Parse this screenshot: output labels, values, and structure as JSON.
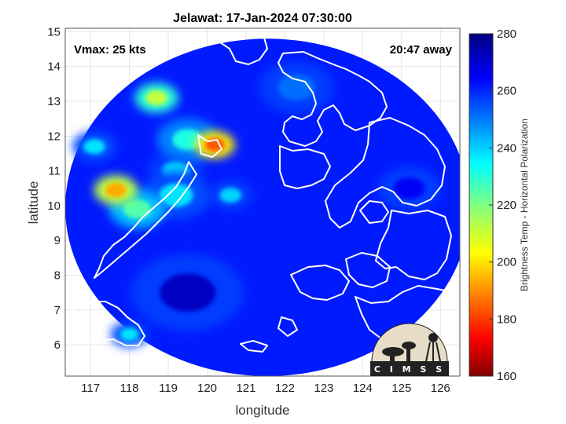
{
  "chart_data": {
    "type": "heatmap",
    "title": "Jelawat: 17-Jan-2024 07:30:00",
    "xlabel": "longitude",
    "ylabel": "latitude",
    "xlim": [
      116.35,
      126.5
    ],
    "ylim": [
      5.1,
      15.1
    ],
    "xticks": [
      117,
      118,
      119,
      120,
      121,
      122,
      123,
      124,
      125,
      126
    ],
    "yticks": [
      6,
      7,
      8,
      9,
      10,
      11,
      12,
      13,
      14,
      15
    ],
    "grid": true,
    "annotations": {
      "vmax": "Vmax: 25 kts",
      "away": "20:47 away"
    },
    "colorbar": {
      "label": "Brightness Temp - Horizontal Polarization",
      "range": [
        160,
        280
      ],
      "ticks": [
        160,
        180,
        200,
        220,
        240,
        260,
        280
      ],
      "colormap": "jet"
    },
    "swath": {
      "center_lon": 121.55,
      "center_lat": 9.95,
      "radius_lon": 5.2,
      "radius_lat": 4.85
    },
    "background_tb": 262,
    "features": [
      {
        "lon": 120.2,
        "lat": 11.75,
        "tb": 185,
        "r": 0.32
      },
      {
        "lon": 117.65,
        "lat": 10.45,
        "tb": 195,
        "r": 0.35
      },
      {
        "lon": 118.7,
        "lat": 13.1,
        "tb": 212,
        "r": 0.35
      },
      {
        "lon": 118.2,
        "lat": 9.9,
        "tb": 225,
        "r": 0.45
      },
      {
        "lon": 119.5,
        "lat": 11.9,
        "tb": 232,
        "r": 0.5
      },
      {
        "lon": 117.1,
        "lat": 11.7,
        "tb": 238,
        "r": 0.35
      },
      {
        "lon": 119.2,
        "lat": 10.3,
        "tb": 238,
        "r": 0.55
      },
      {
        "lon": 120.6,
        "lat": 10.3,
        "tb": 240,
        "r": 0.35
      },
      {
        "lon": 119.2,
        "lat": 11.0,
        "tb": 240,
        "r": 0.45
      },
      {
        "lon": 118.0,
        "lat": 6.3,
        "tb": 238,
        "r": 0.3
      },
      {
        "lon": 122.3,
        "lat": 13.4,
        "tb": 252,
        "r": 0.6
      },
      {
        "lon": 125.2,
        "lat": 10.5,
        "tb": 266,
        "r": 0.5
      },
      {
        "lon": 119.5,
        "lat": 7.5,
        "tb": 272,
        "r": 0.9
      }
    ]
  },
  "logo": {
    "text": "C I M S S"
  }
}
